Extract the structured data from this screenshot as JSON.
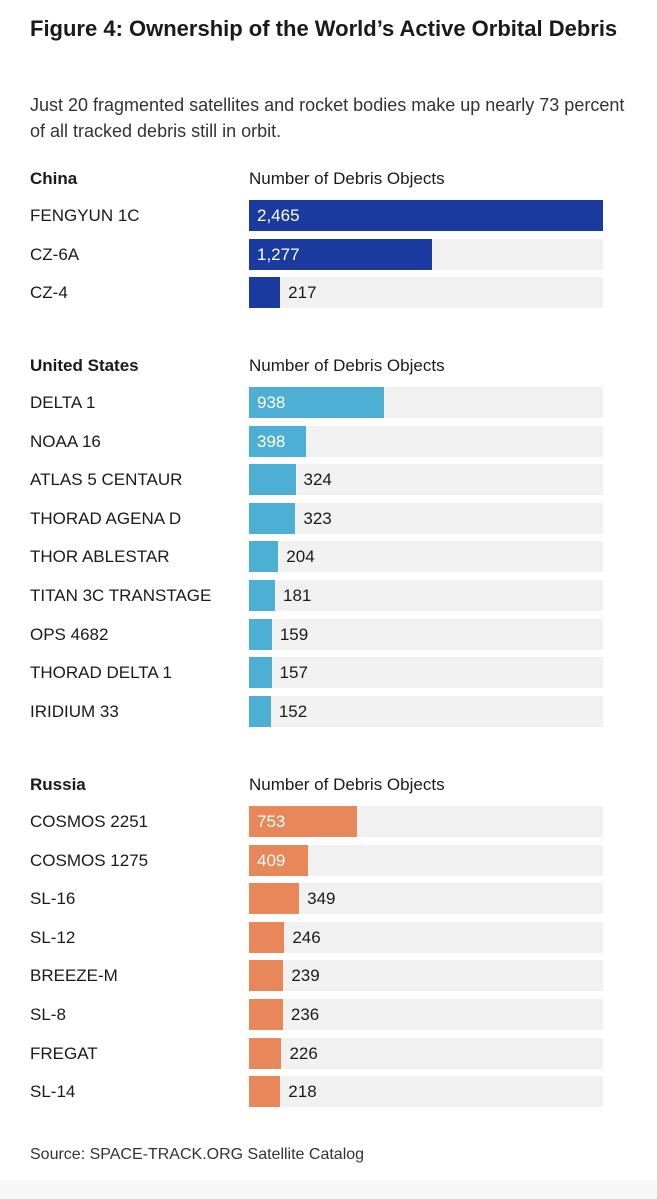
{
  "title": "Figure 4: Ownership of the World’s Active Orbital Debris",
  "subtitle": "Just 20 fragmented satellites and rocket bodies make up nearly 73 percent of all tracked debris still in orbit.",
  "source": "Source: SPACE-TRACK.ORG Satellite Catalog",
  "colors": {
    "China": "#1a3aa0",
    "United States": "#4eafd4",
    "Russia": "#e8875a",
    "track": "#f1f1f2"
  },
  "chart_data": [
    {
      "type": "bar",
      "group": "China",
      "xlabel": "Number of Debris Objects",
      "xlim": [
        0,
        2465
      ],
      "categories": [
        "FENGYUN 1C",
        "CZ-6A",
        "CZ-4"
      ],
      "values": [
        2465,
        1277,
        217
      ],
      "value_labels": [
        "2,465",
        "1,277",
        "217"
      ]
    },
    {
      "type": "bar",
      "group": "United States",
      "xlabel": "Number of Debris Objects",
      "xlim": [
        0,
        2465
      ],
      "categories": [
        "DELTA 1",
        "NOAA 16",
        "ATLAS 5 CENTAUR",
        "THORAD AGENA D",
        "THOR ABLESTAR",
        "TITAN 3C TRANSTAGE",
        "OPS 4682",
        "THORAD DELTA 1",
        "IRIDIUM 33"
      ],
      "values": [
        938,
        398,
        324,
        323,
        204,
        181,
        159,
        157,
        152
      ],
      "value_labels": [
        "938",
        "398",
        "324",
        "323",
        "204",
        "181",
        "159",
        "157",
        "152"
      ]
    },
    {
      "type": "bar",
      "group": "Russia",
      "xlabel": "Number of Debris Objects",
      "xlim": [
        0,
        2465
      ],
      "categories": [
        "COSMOS 2251",
        "COSMOS 1275",
        "SL-16",
        "SL-12",
        "BREEZE-M",
        "SL-8",
        "FREGAT",
        "SL-14"
      ],
      "values": [
        753,
        409,
        349,
        246,
        239,
        236,
        226,
        218
      ],
      "value_labels": [
        "753",
        "409",
        "349",
        "246",
        "239",
        "236",
        "226",
        "218"
      ]
    }
  ]
}
